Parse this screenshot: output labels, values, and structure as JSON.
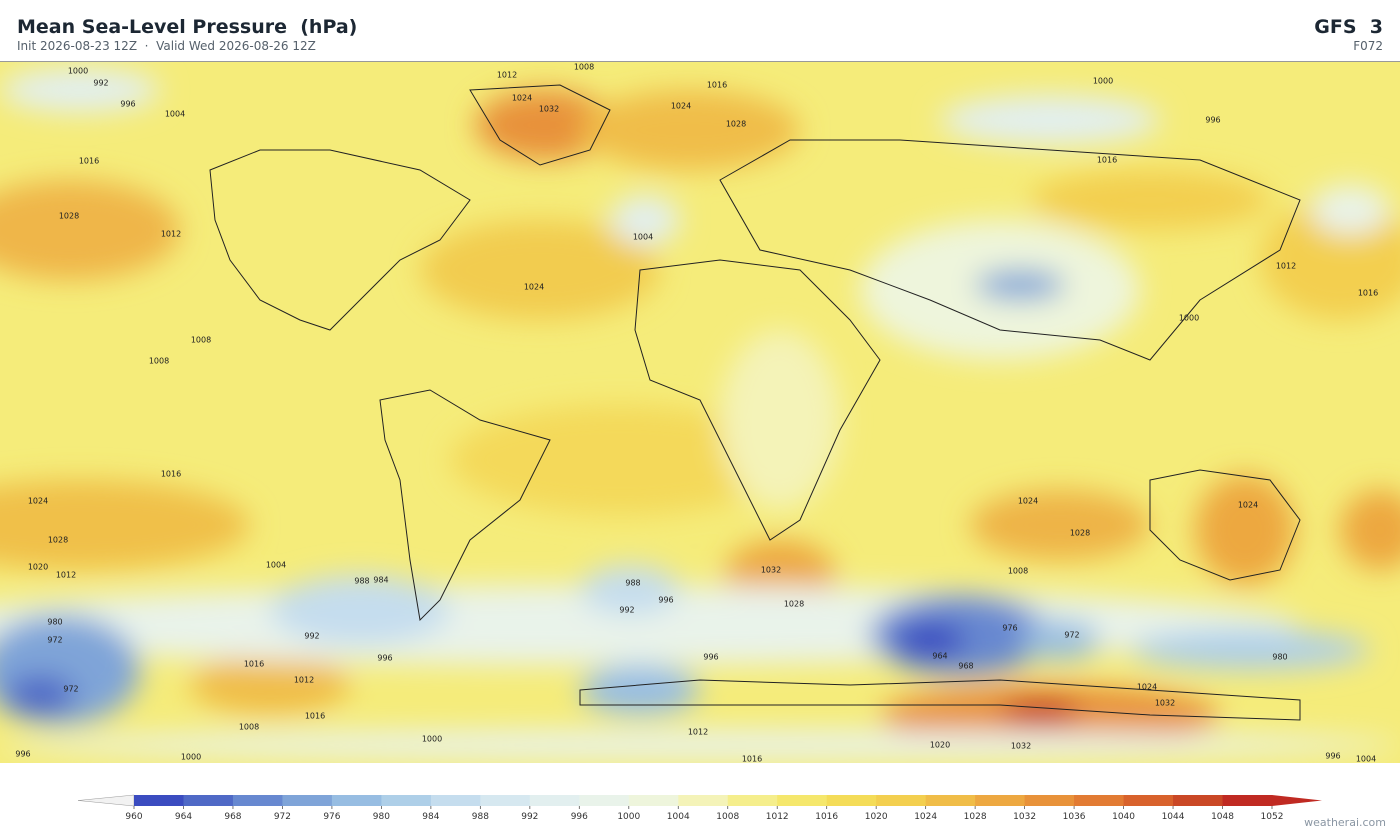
{
  "header": {
    "title": "Mean Sea-Level Pressure  (hPa)",
    "subtitle": "Init 2026-08-23 12Z  ·  Valid Wed 2026-08-26 12Z",
    "model": "GFS  3",
    "forecast_hour": "F072"
  },
  "map": {
    "contour_labels": [
      "1000",
      "992",
      "996",
      "1004",
      "1012",
      "1008",
      "1016",
      "1024",
      "1032",
      "1024",
      "1028",
      "1000",
      "996",
      "1016",
      "1016",
      "1028",
      "1012",
      "1004",
      "1024",
      "1008",
      "1008",
      "1016",
      "1012",
      "1000",
      "1016",
      "1024",
      "1028",
      "1020",
      "1012",
      "1004",
      "988",
      "984",
      "992",
      "996",
      "988",
      "992",
      "996",
      "996",
      "1032",
      "1028",
      "1024",
      "1028",
      "1024",
      "1008",
      "976",
      "972",
      "964",
      "968",
      "1016",
      "1012",
      "1016",
      "980",
      "972",
      "972",
      "1008",
      "1000",
      "1012",
      "1016",
      "1020",
      "1032",
      "1024",
      "1032",
      "980",
      "996",
      "1004",
      "1000",
      "996"
    ]
  },
  "colorbar": {
    "ticks": [
      960,
      964,
      968,
      972,
      976,
      980,
      984,
      988,
      992,
      996,
      1000,
      1004,
      1008,
      1012,
      1016,
      1020,
      1024,
      1028,
      1032,
      1036,
      1040,
      1044,
      1048,
      1052
    ],
    "colors": [
      "#3b4cc0",
      "#4f69c6",
      "#6788d0",
      "#7fa4d8",
      "#97bde2",
      "#aecfe8",
      "#c5ddee",
      "#d6e8f0",
      "#e2efef",
      "#e9f3ea",
      "#eef5dc",
      "#f4f3b8",
      "#f5ee8c",
      "#f5e76c",
      "#f4dc58",
      "#f3cf4f",
      "#f0bd48",
      "#eda841",
      "#e8923a",
      "#e27b33",
      "#d8622c",
      "#ca4826",
      "#c02a22"
    ],
    "under_color": "#f2f2f2",
    "over_color": "#c02a22"
  },
  "footer": {
    "credit": "weatherai.com"
  }
}
